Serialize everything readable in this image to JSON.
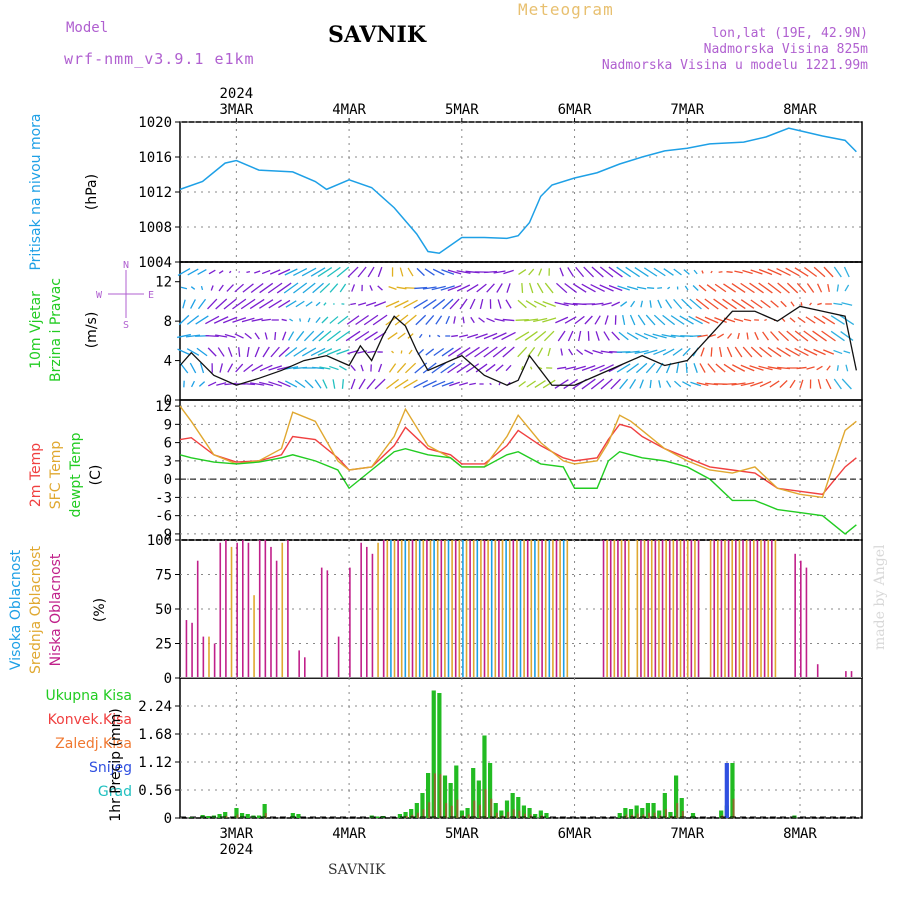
{
  "header": {
    "model_label": "Model",
    "model": "wrf-nmm_v3.9.1 e1km",
    "station": "SAVNIK",
    "title": "Meteogram",
    "lonlat": "lon,lat (19E, 42.9N)",
    "elevation": "Nadmorska Visina 825m",
    "model_elevation": "Nadmorska Visina u modelu 1221.99m"
  },
  "footer": {
    "station": "SAVNIK",
    "watermark": "made by Angel"
  },
  "colors": {
    "pressure": "#1ea0e6",
    "wind_label": "#22cc22",
    "temp": "#f04040",
    "sfc_temp": "#e0a830",
    "dewpoint": "#22cc22",
    "high_cloud": "#1ea0e6",
    "mid_cloud": "#e0a830",
    "low_cloud": "#c0208a",
    "purple": "#b060d0"
  },
  "chart_data": [
    {
      "type": "line",
      "panel": "pressure",
      "ylabel": "Pritisak na nivou mora",
      "unit": "(hPa)",
      "ylim": [
        1004,
        1020
      ],
      "yticks": [
        1004,
        1008,
        1012,
        1016,
        1020
      ],
      "x_day": [
        2.5,
        2.7,
        2.9,
        3.0,
        3.2,
        3.5,
        3.7,
        3.8,
        4.0,
        4.2,
        4.4,
        4.6,
        4.7,
        4.8,
        5.0,
        5.2,
        5.4,
        5.5,
        5.6,
        5.7,
        5.8,
        6.0,
        6.2,
        6.4,
        6.6,
        6.8,
        7.0,
        7.2,
        7.5,
        7.7,
        7.9,
        8.0,
        8.2,
        8.4,
        8.5
      ],
      "series": [
        {
          "values": [
            1012.3,
            1013.2,
            1015.3,
            1015.6,
            1014.5,
            1014.3,
            1013.2,
            1012.3,
            1013.4,
            1012.5,
            1010.2,
            1007.2,
            1005.2,
            1005.0,
            1006.8,
            1006.8,
            1006.7,
            1007.0,
            1008.5,
            1011.5,
            1012.8,
            1013.6,
            1014.2,
            1015.2,
            1016.0,
            1016.7,
            1017.0,
            1017.5,
            1017.7,
            1018.3,
            1019.3,
            1019.0,
            1018.4,
            1017.9,
            1016.6
          ]
        }
      ]
    },
    {
      "type": "line",
      "panel": "wind",
      "ylabel": "10m Vjetar Brzina i Pravac",
      "unit": "(m/s)",
      "compass": [
        "N",
        "E",
        "S",
        "W"
      ],
      "ylim": [
        0,
        14
      ],
      "yticks": [
        0,
        4,
        8,
        12
      ],
      "x_day": [
        2.5,
        2.6,
        2.8,
        3.0,
        3.2,
        3.4,
        3.6,
        3.8,
        4.0,
        4.1,
        4.2,
        4.3,
        4.4,
        4.5,
        4.6,
        4.7,
        4.8,
        5.0,
        5.2,
        5.4,
        5.5,
        5.6,
        5.8,
        6.0,
        6.2,
        6.4,
        6.6,
        6.8,
        7.0,
        7.2,
        7.4,
        7.6,
        7.8,
        8.0,
        8.2,
        8.4,
        8.5
      ],
      "series": [
        {
          "name": "speed",
          "values": [
            3.5,
            4.8,
            2.5,
            1.5,
            2.2,
            3.0,
            4.0,
            4.5,
            3.5,
            5.5,
            4.0,
            6.5,
            8.5,
            7.5,
            5.0,
            3.0,
            3.5,
            4.5,
            2.5,
            1.5,
            2.0,
            4.5,
            1.5,
            1.5,
            2.5,
            3.5,
            4.5,
            3.5,
            4.0,
            6.5,
            9.0,
            9.0,
            8.0,
            9.5,
            9.0,
            8.5,
            3.0
          ]
        }
      ],
      "arrow_bands": [
        {
          "x0": 2.5,
          "x1": 2.75,
          "color": "#1ea0e6"
        },
        {
          "x0": 2.75,
          "x1": 3.45,
          "color": "#7b1fd0"
        },
        {
          "x0": 3.45,
          "x1": 3.75,
          "color": "#22a8e0"
        },
        {
          "x0": 3.75,
          "x1": 4.0,
          "color": "#22c0c0"
        },
        {
          "x0": 4.0,
          "x1": 4.35,
          "color": "#7b1fd0"
        },
        {
          "x0": 4.35,
          "x1": 4.6,
          "color": "#e0b020"
        },
        {
          "x0": 4.6,
          "x1": 4.9,
          "color": "#3060e0"
        },
        {
          "x0": 4.9,
          "x1": 5.5,
          "color": "#7b1fd0"
        },
        {
          "x0": 5.5,
          "x1": 5.85,
          "color": "#a0d030"
        },
        {
          "x0": 5.85,
          "x1": 6.4,
          "color": "#7b1fd0"
        },
        {
          "x0": 6.4,
          "x1": 7.1,
          "color": "#22a8e0"
        },
        {
          "x0": 7.1,
          "x1": 8.3,
          "color": "#f05030"
        },
        {
          "x0": 8.3,
          "x1": 8.5,
          "color": "#30b0e0"
        }
      ]
    },
    {
      "type": "line",
      "panel": "temperature",
      "ylabels": [
        "2m Temp",
        "SFC Temp",
        "dewpt Temp"
      ],
      "unit": "(C)",
      "ylim": [
        -10,
        13
      ],
      "yticks": [
        -9,
        -6,
        -3,
        0,
        3,
        6,
        9,
        12
      ],
      "x_day": [
        2.5,
        2.6,
        2.8,
        3.0,
        3.2,
        3.4,
        3.5,
        3.7,
        3.9,
        4.0,
        4.2,
        4.4,
        4.5,
        4.7,
        4.9,
        5.0,
        5.2,
        5.4,
        5.5,
        5.7,
        5.9,
        6.0,
        6.2,
        6.3,
        6.4,
        6.5,
        6.6,
        6.8,
        7.0,
        7.2,
        7.4,
        7.6,
        7.8,
        8.0,
        8.2,
        8.4,
        8.5
      ],
      "series": [
        {
          "name": "2m Temp",
          "values": [
            6.5,
            6.8,
            4.0,
            2.8,
            3.0,
            4.0,
            7.0,
            6.5,
            3.5,
            1.5,
            2.0,
            5.5,
            8.5,
            5.0,
            4.0,
            2.5,
            2.5,
            5.5,
            8.0,
            5.5,
            3.5,
            3.0,
            3.5,
            6.5,
            9.0,
            8.5,
            7.0,
            5.0,
            3.5,
            2.0,
            1.5,
            1.0,
            -1.5,
            -2.0,
            -2.5,
            2.0,
            3.5
          ]
        },
        {
          "name": "SFC Temp",
          "values": [
            12.0,
            9.5,
            4.0,
            2.5,
            3.0,
            5.0,
            11.0,
            9.5,
            3.0,
            1.5,
            2.0,
            7.0,
            11.5,
            5.5,
            3.5,
            2.0,
            2.0,
            7.0,
            10.5,
            6.0,
            3.0,
            2.5,
            3.0,
            6.0,
            10.5,
            9.5,
            8.0,
            5.0,
            3.0,
            1.5,
            1.0,
            2.0,
            -1.5,
            -2.5,
            -3.0,
            8.0,
            9.5
          ]
        },
        {
          "name": "dewpt Temp",
          "values": [
            4.0,
            3.5,
            2.8,
            2.5,
            2.8,
            3.5,
            4.0,
            3.0,
            1.5,
            -1.5,
            1.5,
            4.5,
            5.0,
            4.0,
            3.5,
            2.0,
            2.0,
            4.0,
            4.5,
            2.5,
            2.0,
            -1.5,
            -1.5,
            3.0,
            4.5,
            4.0,
            3.5,
            3.0,
            2.0,
            0.0,
            -3.5,
            -3.5,
            -5.0,
            -5.5,
            -6.0,
            -9.0,
            -7.5
          ]
        }
      ]
    },
    {
      "type": "bar",
      "panel": "cloud",
      "ylabels": [
        "Visoka Oblacnost",
        "Srednja Oblacnost",
        "Niska Oblacnost"
      ],
      "unit": "(%)",
      "ylim": [
        0,
        100
      ],
      "yticks": [
        0,
        25,
        50,
        75,
        100
      ],
      "series": [
        {
          "name": "Niska Oblacnost",
          "x_day": [
            2.55,
            2.6,
            2.65,
            2.7,
            2.8,
            2.85,
            2.9,
            3.0,
            3.05,
            3.1,
            3.2,
            3.25,
            3.3,
            3.35,
            3.45,
            3.55,
            3.6,
            3.75,
            3.8,
            3.9,
            4.0,
            4.1,
            4.15,
            4.2,
            4.3,
            7.95,
            8.0,
            8.05,
            8.15,
            8.4,
            8.45
          ],
          "values": [
            42,
            40,
            85,
            30,
            25,
            98,
            100,
            98,
            100,
            98,
            100,
            100,
            95,
            85,
            100,
            20,
            15,
            80,
            78,
            30,
            80,
            98,
            95,
            90,
            75,
            90,
            85,
            80,
            10,
            5,
            5
          ]
        },
        {
          "name": "Srednja Oblacnost",
          "x_day": [
            2.75,
            2.95,
            3.15,
            3.4,
            4.25
          ],
          "values": [
            30,
            95,
            60,
            98,
            98
          ]
        },
        {
          "name": "span",
          "x0": 4.3,
          "x1": 5.95,
          "color_cycle": [
            "#c0208a",
            "#e0a830",
            "#1ea0e6",
            "#e0a830"
          ],
          "value": 100
        },
        {
          "name": "span",
          "x0": 6.25,
          "x1": 6.5,
          "color_cycle": [
            "#c0208a",
            "#e0a830"
          ],
          "value": 100
        },
        {
          "name": "span",
          "x0": 6.55,
          "x1": 7.1,
          "color_cycle": [
            "#e0a830",
            "#c0208a"
          ],
          "value": 100
        },
        {
          "name": "span",
          "x0": 7.2,
          "x1": 7.8,
          "color_cycle": [
            "#e0a830",
            "#c0208a"
          ],
          "value": 100
        }
      ]
    },
    {
      "type": "bar",
      "panel": "precip",
      "ylabel": "1hr Precip",
      "unit": "(mm)",
      "legend": [
        "Ukupna Kisa",
        "Konvek.Kisa",
        "Zaledj.Kisa",
        "Snijeg",
        "Grad"
      ],
      "legend_colors": [
        "#22cc22",
        "#f04040",
        "#f07830",
        "#3050e0",
        "#20c0c0"
      ],
      "ylim": [
        0,
        2.8
      ],
      "yticks": [
        0,
        0.56,
        1.12,
        1.68,
        2.24
      ],
      "series": [
        {
          "name": "Ukupna Kisa",
          "x_day": [
            2.6,
            2.7,
            2.75,
            2.8,
            2.85,
            2.9,
            3.0,
            3.05,
            3.1,
            3.15,
            3.2,
            3.25,
            3.5,
            3.55,
            4.2,
            4.25,
            4.3,
            4.45,
            4.5,
            4.55,
            4.6,
            4.65,
            4.7,
            4.75,
            4.8,
            4.85,
            4.9,
            4.95,
            5.0,
            5.05,
            5.1,
            5.15,
            5.2,
            5.25,
            5.3,
            5.35,
            5.4,
            5.45,
            5.5,
            5.55,
            5.6,
            5.65,
            5.7,
            5.75,
            6.4,
            6.45,
            6.5,
            6.55,
            6.6,
            6.65,
            6.7,
            6.75,
            6.8,
            6.85,
            6.9,
            6.95,
            7.05,
            7.3,
            7.35,
            7.4,
            7.95
          ],
          "values": [
            0.02,
            0.06,
            0.04,
            0.05,
            0.08,
            0.12,
            0.2,
            0.1,
            0.08,
            0.05,
            0.05,
            0.28,
            0.1,
            0.08,
            0.05,
            0.03,
            0.04,
            0.08,
            0.12,
            0.18,
            0.3,
            0.5,
            0.9,
            2.55,
            2.5,
            0.85,
            0.7,
            1.05,
            0.15,
            0.2,
            1.0,
            0.75,
            1.65,
            1.1,
            0.3,
            0.15,
            0.35,
            0.5,
            0.42,
            0.25,
            0.2,
            0.08,
            0.15,
            0.1,
            0.1,
            0.2,
            0.18,
            0.25,
            0.2,
            0.3,
            0.3,
            0.15,
            0.5,
            0.12,
            0.85,
            0.4,
            0.1,
            0.15,
            0.25,
            1.1,
            0.05
          ]
        },
        {
          "name": "Snijeg",
          "x_day": [
            7.35
          ],
          "values": [
            1.1
          ]
        }
      ]
    }
  ],
  "axis": {
    "day_labels": [
      "3MAR",
      "4MAR",
      "5MAR",
      "6MAR",
      "7MAR",
      "8MAR"
    ],
    "day_values": [
      3,
      4,
      5,
      6,
      7,
      8
    ],
    "year_label": "2024",
    "xlim": [
      2.5,
      8.55
    ]
  }
}
